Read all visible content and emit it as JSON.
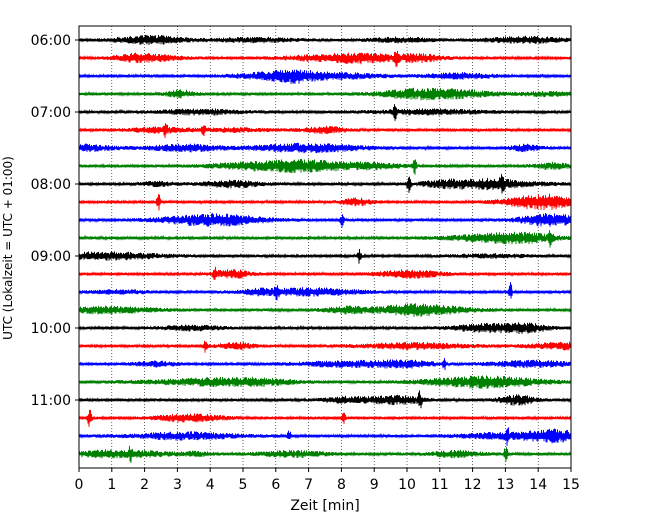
{
  "chart_data": {
    "type": "line",
    "subtype": "helicorder",
    "title": "",
    "xlabel": "Zeit  [min]",
    "ylabel": "UTC (Lokalzeit = UTC + 01:00)",
    "xlim": [
      0,
      15
    ],
    "x_ticks": [
      "0",
      "1",
      "2",
      "3",
      "4",
      "5",
      "6",
      "7",
      "8",
      "9",
      "10",
      "11",
      "12",
      "13",
      "14",
      "15"
    ],
    "y_ticks": [
      "06:00",
      "07:00",
      "08:00",
      "09:00",
      "10:00",
      "11:00"
    ],
    "trace_interval_minutes": 15,
    "trace_colors": [
      "#000000",
      "#ff0000",
      "#0000ff",
      "#008000"
    ],
    "grid": "vertical dotted lines at each minute",
    "traces": [
      {
        "start": "06:00",
        "color": "#000000"
      },
      {
        "start": "06:15",
        "color": "#ff0000"
      },
      {
        "start": "06:30",
        "color": "#0000ff"
      },
      {
        "start": "06:45",
        "color": "#008000"
      },
      {
        "start": "07:00",
        "color": "#000000"
      },
      {
        "start": "07:15",
        "color": "#ff0000"
      },
      {
        "start": "07:30",
        "color": "#0000ff"
      },
      {
        "start": "07:45",
        "color": "#008000"
      },
      {
        "start": "08:00",
        "color": "#000000"
      },
      {
        "start": "08:15",
        "color": "#ff0000"
      },
      {
        "start": "08:30",
        "color": "#0000ff"
      },
      {
        "start": "08:45",
        "color": "#008000"
      },
      {
        "start": "09:00",
        "color": "#000000"
      },
      {
        "start": "09:15",
        "color": "#ff0000"
      },
      {
        "start": "09:30",
        "color": "#0000ff"
      },
      {
        "start": "09:45",
        "color": "#008000"
      },
      {
        "start": "10:00",
        "color": "#000000"
      },
      {
        "start": "10:15",
        "color": "#ff0000"
      },
      {
        "start": "10:30",
        "color": "#0000ff"
      },
      {
        "start": "10:45",
        "color": "#008000"
      },
      {
        "start": "11:00",
        "color": "#000000"
      },
      {
        "start": "11:15",
        "color": "#ff0000"
      },
      {
        "start": "11:30",
        "color": "#0000ff"
      },
      {
        "start": "11:45",
        "color": "#008000"
      }
    ]
  }
}
